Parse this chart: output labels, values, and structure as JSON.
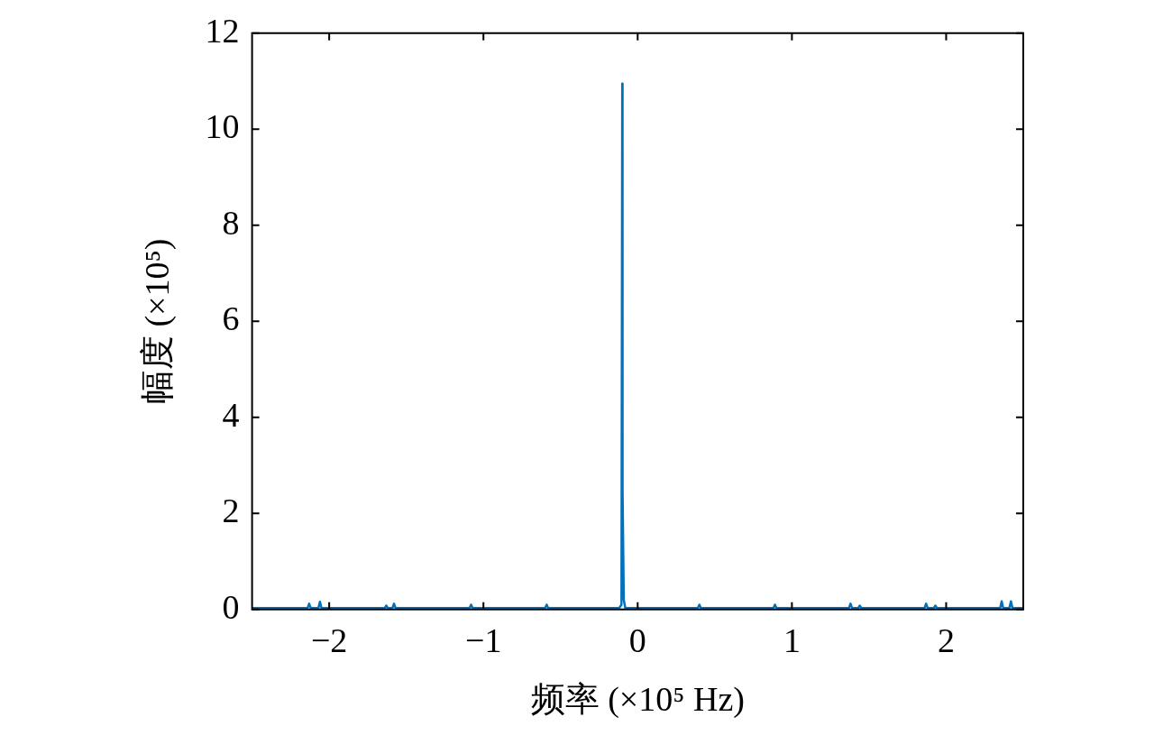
{
  "chart_data": {
    "type": "line",
    "xlabel": "频率 (×10⁵ Hz)",
    "ylabel": "幅度 (×10⁵)",
    "xlim": [
      -2.5,
      2.5
    ],
    "ylim": [
      0,
      12
    ],
    "xticks": [
      {
        "value": -2,
        "label": "−2"
      },
      {
        "value": -1,
        "label": "−1"
      },
      0,
      1,
      2
    ],
    "yticks": [
      0,
      2,
      4,
      6,
      8,
      10,
      12
    ],
    "grid": false,
    "legend": false,
    "marker": "none",
    "line_style": "solid",
    "series": [
      {
        "color": "#0072bd",
        "x": [
          -2.5,
          -2.14,
          -2.13,
          -2.12,
          -2.07,
          -2.06,
          -2.05,
          -1.64,
          -1.63,
          -1.62,
          -1.59,
          -1.58,
          -1.57,
          -1.09,
          -1.08,
          -1.07,
          -0.6,
          -0.59,
          -0.58,
          -0.12,
          -0.105,
          -0.1,
          -0.098,
          -0.09,
          -0.08,
          0.39,
          0.4,
          0.41,
          0.88,
          0.89,
          0.9,
          1.37,
          1.38,
          1.39,
          1.43,
          1.44,
          1.45,
          1.86,
          1.87,
          1.88,
          1.92,
          1.93,
          1.94,
          2.35,
          2.36,
          2.37,
          2.41,
          2.42,
          2.43,
          2.5
        ],
        "values": [
          0.03,
          0.03,
          0.12,
          0.03,
          0.03,
          0.16,
          0.03,
          0.03,
          0.08,
          0.03,
          0.03,
          0.12,
          0.03,
          0.03,
          0.1,
          0.03,
          0.03,
          0.1,
          0.03,
          0.03,
          0.1,
          10.95,
          2.5,
          0.2,
          0.03,
          0.03,
          0.1,
          0.03,
          0.03,
          0.1,
          0.03,
          0.03,
          0.12,
          0.03,
          0.03,
          0.08,
          0.03,
          0.03,
          0.12,
          0.03,
          0.03,
          0.08,
          0.03,
          0.03,
          0.17,
          0.03,
          0.03,
          0.17,
          0.03,
          0.03
        ]
      }
    ]
  }
}
